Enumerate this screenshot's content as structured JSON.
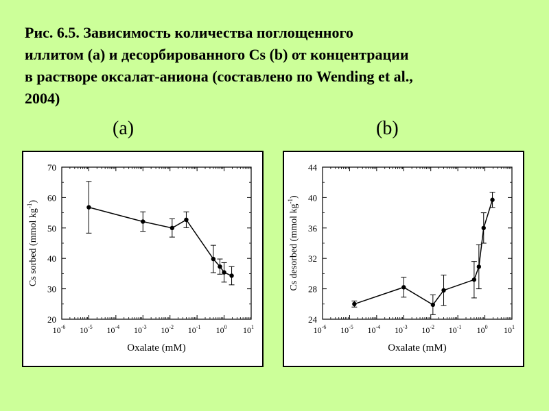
{
  "title_lines": [
    "Рис. 6.5. Зависимость количества поглощенного",
    "иллитом (a)  и десорбированного Cs (b)  от концентрации",
    "в растворе  оксалат-аниона (составлено по Wending et al.,",
    "2004)"
  ],
  "panel_labels": [
    "(a)",
    "(b)"
  ],
  "chart_data": [
    {
      "type": "line",
      "xscale": "log",
      "xlabel": "Oxalate (mM)",
      "ylabel": "Cs sorbed (mmol kg-1)",
      "xlim": [
        -6,
        1
      ],
      "ylim": [
        20,
        70
      ],
      "xticks": [
        -6,
        -5,
        -4,
        -3,
        -2,
        -1,
        0,
        1
      ],
      "yticks": [
        20,
        30,
        40,
        50,
        60,
        70
      ],
      "grid": false,
      "points": [
        {
          "x": 1e-05,
          "y": 56.8,
          "err": 8.5
        },
        {
          "x": 0.001,
          "y": 52.1,
          "err": 3.2
        },
        {
          "x": 0.012,
          "y": 50.0,
          "err": 3.0
        },
        {
          "x": 0.04,
          "y": 52.7,
          "err": 2.6
        },
        {
          "x": 0.4,
          "y": 39.8,
          "err": 4.5
        },
        {
          "x": 0.7,
          "y": 37.3,
          "err": 2.5
        },
        {
          "x": 1.0,
          "y": 35.4,
          "err": 3.2
        },
        {
          "x": 1.9,
          "y": 34.3,
          "err": 3.0
        }
      ]
    },
    {
      "type": "line",
      "xscale": "log",
      "xlabel": "Oxalate (mM)",
      "ylabel": "Cs desorbed (mmol kg-1)",
      "xlim": [
        -6,
        1
      ],
      "ylim": [
        24,
        44
      ],
      "xticks": [
        -6,
        -5,
        -4,
        -3,
        -2,
        -1,
        0,
        1
      ],
      "yticks": [
        24,
        28,
        32,
        36,
        40,
        44
      ],
      "grid": false,
      "points": [
        {
          "x": 1.5e-05,
          "y": 26.0,
          "err": 0.4
        },
        {
          "x": 0.001,
          "y": 28.2,
          "err": 1.3
        },
        {
          "x": 0.012,
          "y": 25.9,
          "err": 1.3
        },
        {
          "x": 0.03,
          "y": 27.8,
          "err": 2.0
        },
        {
          "x": 0.4,
          "y": 29.2,
          "err": 2.4
        },
        {
          "x": 0.6,
          "y": 30.9,
          "err": 2.9
        },
        {
          "x": 0.9,
          "y": 36.0,
          "err": 2.0
        },
        {
          "x": 1.9,
          "y": 39.7,
          "err": 1.0
        }
      ]
    }
  ]
}
